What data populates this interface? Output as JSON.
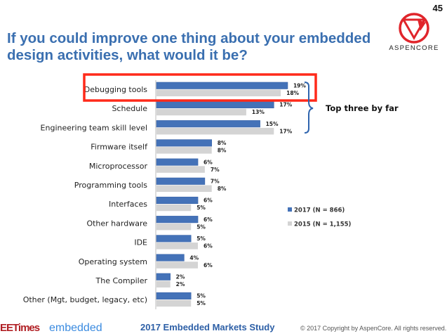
{
  "page_number": "45",
  "title": "If you could improve one thing about your embedded design activities, what would it be?",
  "logo": {
    "text": "ASPENCORE",
    "color": "#e0252b"
  },
  "footer": {
    "eetimes": "EETimes",
    "embedded": "embedded",
    "study": "2017 Embedded Markets Study",
    "copyright": "© 2017 Copyright by AspenCore. All rights reserved."
  },
  "chart_data": {
    "type": "bar",
    "orientation": "horizontal",
    "categories": [
      "Debugging tools",
      "Schedule",
      "Engineering team skill level",
      "Firmware itself",
      "Microprocessor",
      "Programming tools",
      "Interfaces",
      "Other hardware",
      "IDE",
      "Operating system",
      "The Compiler",
      "Other (Mgt, budget, legacy, etc)"
    ],
    "series": [
      {
        "name": "2017 (N = 866)",
        "color": "#4472b8",
        "values": [
          19,
          17,
          15,
          8,
          6,
          7,
          6,
          6,
          5,
          4,
          2,
          5
        ]
      },
      {
        "name": "2015 (N = 1,155)",
        "color": "#d4d4d4",
        "values": [
          18,
          13,
          17,
          8,
          7,
          8,
          5,
          5,
          6,
          6,
          2,
          5
        ]
      }
    ],
    "value_suffix": "%",
    "legend_position": "right",
    "grid": false,
    "annotation": "Top three by far",
    "highlight": {
      "category": "Debugging tools",
      "color": "#ff2a1a"
    }
  }
}
